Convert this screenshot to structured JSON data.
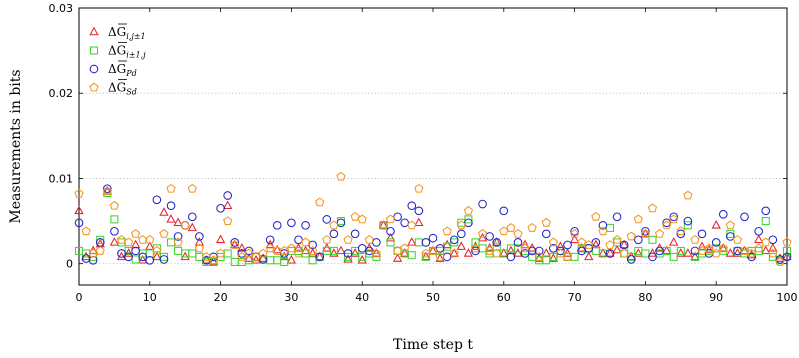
{
  "chart_data": {
    "type": "scatter",
    "xlabel": "Time step t",
    "ylabel": "Measurements in bits",
    "xlim": [
      0,
      100
    ],
    "ylim": [
      -0.0025,
      0.03
    ],
    "x_ticks": [
      0,
      10,
      20,
      30,
      40,
      50,
      60,
      70,
      80,
      90,
      100
    ],
    "y_ticks": [
      0,
      0.01,
      0.02,
      0.03
    ],
    "y_tick_labels": [
      "0",
      "0.01",
      "0.02",
      "0.03"
    ],
    "grid": "horizontal dotted",
    "legend_position": "top-left",
    "series": [
      {
        "name": "ΔG̅i,j±1",
        "legend_main": "ΔG",
        "legend_sub": "i,j±1",
        "marker": "triangle",
        "color": "#e8222c",
        "x": [
          0,
          1,
          2,
          3,
          4,
          5,
          6,
          7,
          8,
          9,
          10,
          11,
          12,
          13,
          14,
          15,
          16,
          17,
          18,
          19,
          20,
          21,
          22,
          23,
          24,
          25,
          26,
          27,
          28,
          29,
          30,
          31,
          32,
          33,
          34,
          35,
          36,
          37,
          38,
          39,
          40,
          41,
          42,
          43,
          44,
          45,
          46,
          47,
          48,
          49,
          50,
          51,
          52,
          53,
          54,
          55,
          56,
          57,
          58,
          59,
          60,
          61,
          62,
          63,
          64,
          65,
          66,
          67,
          68,
          69,
          70,
          71,
          72,
          73,
          74,
          75,
          76,
          77,
          78,
          79,
          80,
          81,
          82,
          83,
          84,
          85,
          86,
          87,
          88,
          89,
          90,
          91,
          92,
          93,
          94,
          95,
          96,
          97,
          98,
          99,
          100
        ],
        "y": [
          0.0062,
          0.0008,
          0.0015,
          0.0023,
          0.0085,
          0.0025,
          0.0008,
          0.0012,
          0.0022,
          0.0004,
          0.002,
          0.0008,
          0.006,
          0.0052,
          0.0048,
          0.0008,
          0.0042,
          0.0025,
          0.0004,
          0.0002,
          0.0028,
          0.0068,
          0.0022,
          0.0018,
          0.0006,
          0.0004,
          0.0006,
          0.0022,
          0.0016,
          0.0008,
          0.0004,
          0.0018,
          0.0015,
          0.0012,
          0.0008,
          0.0018,
          0.0012,
          0.0015,
          0.0005,
          0.0012,
          0.0004,
          0.0018,
          0.0012,
          0.0045,
          0.003,
          0.0006,
          0.0012,
          0.0025,
          0.0048,
          0.0008,
          0.0015,
          0.0006,
          0.0022,
          0.0012,
          0.002,
          0.0012,
          0.002,
          0.003,
          0.0018,
          0.0025,
          0.0012,
          0.0015,
          0.0012,
          0.0022,
          0.0018,
          0.0006,
          0.0012,
          0.0006,
          0.002,
          0.0012,
          0.0028,
          0.0018,
          0.0008,
          0.0022,
          0.0012,
          0.0012,
          0.0016,
          0.0022,
          0.0008,
          0.0012,
          0.0035,
          0.0012,
          0.0018,
          0.0015,
          0.0025,
          0.0012,
          0.0012,
          0.0008,
          0.002,
          0.0016,
          0.0045,
          0.0018,
          0.0012,
          0.0012,
          0.0015,
          0.001,
          0.0028,
          0.0015,
          0.0018,
          0.0006,
          0.0008
        ]
      },
      {
        "name": "ΔG̅i±1,j",
        "legend_main": "ΔG",
        "legend_sub": "i±1,j",
        "marker": "square",
        "color": "#3fd52c",
        "x": [
          0,
          1,
          2,
          3,
          4,
          5,
          6,
          7,
          8,
          9,
          10,
          11,
          12,
          13,
          14,
          15,
          16,
          17,
          18,
          19,
          20,
          21,
          22,
          23,
          24,
          25,
          26,
          27,
          28,
          29,
          30,
          31,
          32,
          33,
          34,
          35,
          36,
          37,
          38,
          39,
          40,
          41,
          42,
          43,
          44,
          45,
          46,
          47,
          48,
          49,
          50,
          51,
          52,
          53,
          54,
          55,
          56,
          57,
          58,
          59,
          60,
          61,
          62,
          63,
          64,
          65,
          66,
          67,
          68,
          69,
          70,
          71,
          72,
          73,
          74,
          75,
          76,
          77,
          78,
          79,
          80,
          81,
          82,
          83,
          84,
          85,
          86,
          87,
          88,
          89,
          90,
          91,
          92,
          93,
          94,
          95,
          96,
          97,
          98,
          99,
          100
        ],
        "y": [
          0.0015,
          0.0012,
          0.0008,
          0.0028,
          0.0083,
          0.0052,
          0.0025,
          0.0015,
          0.0005,
          0.0012,
          0.0012,
          0.0018,
          0.0008,
          0.0025,
          0.0015,
          0.0012,
          0.0012,
          0.0008,
          0.0002,
          0.0002,
          0.0008,
          0.0012,
          0.0002,
          0.0002,
          0.0004,
          0.0008,
          0.0005,
          0.0004,
          0.0004,
          0.0002,
          0.0015,
          0.0015,
          0.0012,
          0.0004,
          0.0008,
          0.0015,
          0.0015,
          0.005,
          0.0008,
          0.0015,
          0.0008,
          0.0012,
          0.0008,
          0.0045,
          0.0025,
          0.0015,
          0.0012,
          0.001,
          0.0025,
          0.0008,
          0.0015,
          0.0015,
          0.002,
          0.0025,
          0.0048,
          0.0052,
          0.0025,
          0.0018,
          0.0012,
          0.002,
          0.0012,
          0.0018,
          0.0018,
          0.0015,
          0.0008,
          0.0004,
          0.0004,
          0.0008,
          0.0015,
          0.0008,
          0.0008,
          0.0018,
          0.0018,
          0.0015,
          0.0012,
          0.0042,
          0.0025,
          0.0012,
          0.0008,
          0.0015,
          0.0012,
          0.0028,
          0.0012,
          0.0015,
          0.0008,
          0.0015,
          0.0045,
          0.0008,
          0.0012,
          0.0015,
          0.0018,
          0.0015,
          0.0035,
          0.0015,
          0.0012,
          0.0015,
          0.0015,
          0.005,
          0.0008,
          0.0004,
          0.0015
        ]
      },
      {
        "name": "ΔG̅Pd",
        "legend_main": "ΔG",
        "legend_sub": "Pd",
        "marker": "circle",
        "color": "#2224c9",
        "x": [
          0,
          1,
          2,
          3,
          4,
          5,
          6,
          7,
          8,
          9,
          10,
          11,
          12,
          13,
          14,
          15,
          16,
          17,
          18,
          19,
          20,
          21,
          22,
          23,
          24,
          25,
          26,
          27,
          28,
          29,
          30,
          31,
          32,
          33,
          34,
          35,
          36,
          37,
          38,
          39,
          40,
          41,
          42,
          43,
          44,
          45,
          46,
          47,
          48,
          49,
          50,
          51,
          52,
          53,
          54,
          55,
          56,
          57,
          58,
          59,
          60,
          61,
          62,
          63,
          64,
          65,
          66,
          67,
          68,
          69,
          70,
          71,
          72,
          73,
          74,
          75,
          76,
          77,
          78,
          79,
          80,
          81,
          82,
          83,
          84,
          85,
          86,
          87,
          88,
          89,
          90,
          91,
          92,
          93,
          94,
          95,
          96,
          97,
          98,
          99,
          100
        ],
        "y": [
          0.0048,
          0.0006,
          0.0004,
          0.0025,
          0.0088,
          0.0038,
          0.0012,
          0.0008,
          0.0015,
          0.0008,
          0.0004,
          0.0075,
          0.0005,
          0.0068,
          0.0032,
          0.0045,
          0.0055,
          0.0032,
          0.0004,
          0.0008,
          0.0065,
          0.008,
          0.0025,
          0.0012,
          0.0015,
          0.0008,
          0.0005,
          0.0028,
          0.0045,
          0.0012,
          0.0048,
          0.0028,
          0.0045,
          0.0022,
          0.0008,
          0.0052,
          0.0035,
          0.0048,
          0.0012,
          0.0035,
          0.0018,
          0.0015,
          0.0025,
          0.0045,
          0.0038,
          0.0055,
          0.0048,
          0.0068,
          0.0062,
          0.0025,
          0.003,
          0.0018,
          0.0008,
          0.0028,
          0.0035,
          0.0048,
          0.0015,
          0.007,
          0.0032,
          0.0025,
          0.0062,
          0.0008,
          0.0025,
          0.0012,
          0.0015,
          0.0015,
          0.0035,
          0.0018,
          0.0015,
          0.0022,
          0.0038,
          0.0015,
          0.0018,
          0.0025,
          0.0045,
          0.0012,
          0.0055,
          0.0022,
          0.0005,
          0.0028,
          0.0038,
          0.0008,
          0.0015,
          0.0048,
          0.0055,
          0.0035,
          0.005,
          0.0015,
          0.0035,
          0.0012,
          0.0025,
          0.0058,
          0.0032,
          0.0015,
          0.0055,
          0.0008,
          0.0038,
          0.0062,
          0.0028,
          0.0005,
          0.0008
        ]
      },
      {
        "name": "ΔG̅Sd",
        "legend_main": "ΔG",
        "legend_sub": "Sd",
        "marker": "pentagon",
        "color": "#f5951f",
        "x": [
          0,
          1,
          2,
          3,
          4,
          5,
          6,
          7,
          8,
          9,
          10,
          11,
          12,
          13,
          14,
          15,
          16,
          17,
          18,
          19,
          20,
          21,
          22,
          23,
          24,
          25,
          26,
          27,
          28,
          29,
          30,
          31,
          32,
          33,
          34,
          35,
          36,
          37,
          38,
          39,
          40,
          41,
          42,
          43,
          44,
          45,
          46,
          47,
          48,
          49,
          50,
          51,
          52,
          53,
          54,
          55,
          56,
          57,
          58,
          59,
          60,
          61,
          62,
          63,
          64,
          65,
          66,
          67,
          68,
          69,
          70,
          71,
          72,
          73,
          74,
          75,
          76,
          77,
          78,
          79,
          80,
          81,
          82,
          83,
          84,
          85,
          86,
          87,
          88,
          89,
          90,
          91,
          92,
          93,
          94,
          95,
          96,
          97,
          98,
          99,
          100
        ],
        "y": [
          0.0082,
          0.0038,
          0.0012,
          0.0015,
          0.0085,
          0.0068,
          0.0028,
          0.0025,
          0.0035,
          0.0028,
          0.0028,
          0.0015,
          0.0035,
          0.0088,
          0.0025,
          0.0045,
          0.0088,
          0.0018,
          0.0008,
          0.0004,
          0.0012,
          0.005,
          0.0022,
          0.0008,
          0.0012,
          0.0008,
          0.0012,
          0.0018,
          0.0015,
          0.0015,
          0.0018,
          0.0012,
          0.0025,
          0.0015,
          0.0072,
          0.0028,
          0.0045,
          0.0102,
          0.0028,
          0.0055,
          0.0052,
          0.0028,
          0.0012,
          0.0045,
          0.0052,
          0.0015,
          0.0018,
          0.0045,
          0.0088,
          0.0012,
          0.0015,
          0.0008,
          0.0038,
          0.0012,
          0.0045,
          0.0062,
          0.0018,
          0.0035,
          0.0015,
          0.0012,
          0.0038,
          0.0042,
          0.0035,
          0.0018,
          0.0042,
          0.0008,
          0.0048,
          0.0025,
          0.0012,
          0.0008,
          0.0035,
          0.0025,
          0.0022,
          0.0055,
          0.0038,
          0.0022,
          0.0028,
          0.0012,
          0.0032,
          0.0052,
          0.0035,
          0.0065,
          0.0035,
          0.0045,
          0.0052,
          0.0038,
          0.008,
          0.0028,
          0.0015,
          0.0018,
          0.0012,
          0.0018,
          0.0045,
          0.0028,
          0.0015,
          0.0012,
          0.0018,
          0.0025,
          0.0012,
          0.0002,
          0.0025
        ]
      }
    ]
  }
}
